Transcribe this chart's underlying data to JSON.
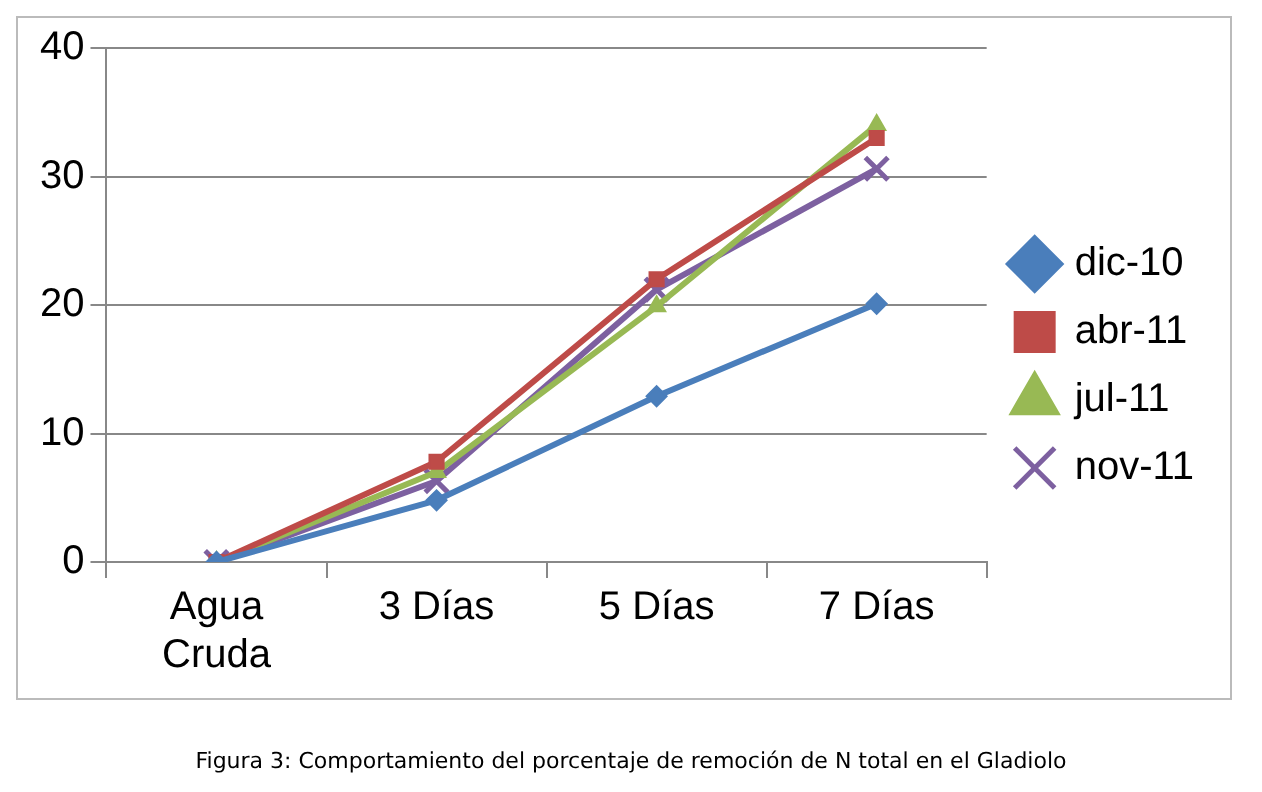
{
  "chart_data": {
    "type": "line",
    "categories": [
      "Agua Cruda",
      "3 Días",
      "5 Días",
      "7 Días"
    ],
    "series": [
      {
        "name": "dic-10",
        "color": "#4a7ebb",
        "marker": "diamond",
        "values": [
          0,
          4.8,
          12.9,
          20.1
        ]
      },
      {
        "name": "abr-11",
        "color": "#be4b48",
        "marker": "square",
        "values": [
          0,
          7.8,
          22,
          33
        ]
      },
      {
        "name": "jul-11",
        "color": "#98b954",
        "marker": "triangle",
        "values": [
          0,
          7,
          19.9,
          34
        ]
      },
      {
        "name": "nov-11",
        "color": "#7d60a0",
        "marker": "cross",
        "values": [
          0,
          6.3,
          21.2,
          30.6
        ]
      }
    ],
    "ylim": [
      0,
      40
    ],
    "yticks": [
      0,
      10,
      20,
      30,
      40
    ],
    "grid": "y",
    "legend": "right",
    "annotations": [
      "Figura 3: Comportamiento del porcentaje de remoción de N total en el Gladiolo"
    ]
  }
}
